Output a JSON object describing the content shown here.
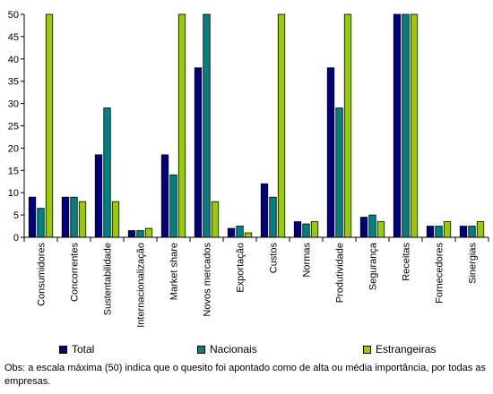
{
  "chart_data": {
    "type": "bar",
    "title": "",
    "xlabel": "",
    "ylabel": "",
    "ylim": [
      0,
      50
    ],
    "yticks": [
      0,
      5,
      10,
      15,
      20,
      25,
      30,
      35,
      40,
      45,
      50
    ],
    "grid": false,
    "legend_position": "bottom",
    "categories": [
      "Consumidores",
      "Concorrentes",
      "Sustentabilidade",
      "Internacionalização",
      "Market share",
      "Novos mercados",
      "Exportação",
      "Custos",
      "Normas",
      "Produtividade",
      "Segurança",
      "Receitas",
      "Fornecedores",
      "Sinergias"
    ],
    "series": [
      {
        "name": "Total",
        "color": "#000080",
        "values": [
          9,
          9,
          18.5,
          1.5,
          18.5,
          38,
          2,
          12,
          3.5,
          38,
          4.5,
          50,
          2.5,
          2.5
        ]
      },
      {
        "name": "Nacionais",
        "color": "#008080",
        "values": [
          6.5,
          9,
          29,
          1.5,
          14,
          50,
          2.5,
          9,
          3,
          29,
          5,
          50,
          2.5,
          2.5
        ]
      },
      {
        "name": "Estrangeiras",
        "color": "#99CC00",
        "values": [
          50,
          8,
          8,
          2,
          50,
          8,
          1,
          50,
          3.5,
          50,
          3.5,
          50,
          3.5,
          3.5
        ]
      }
    ]
  },
  "note": "Obs: a escala máxima (50) indica que o quesito foi apontado como de alta ou média importância, por todas as empresas."
}
